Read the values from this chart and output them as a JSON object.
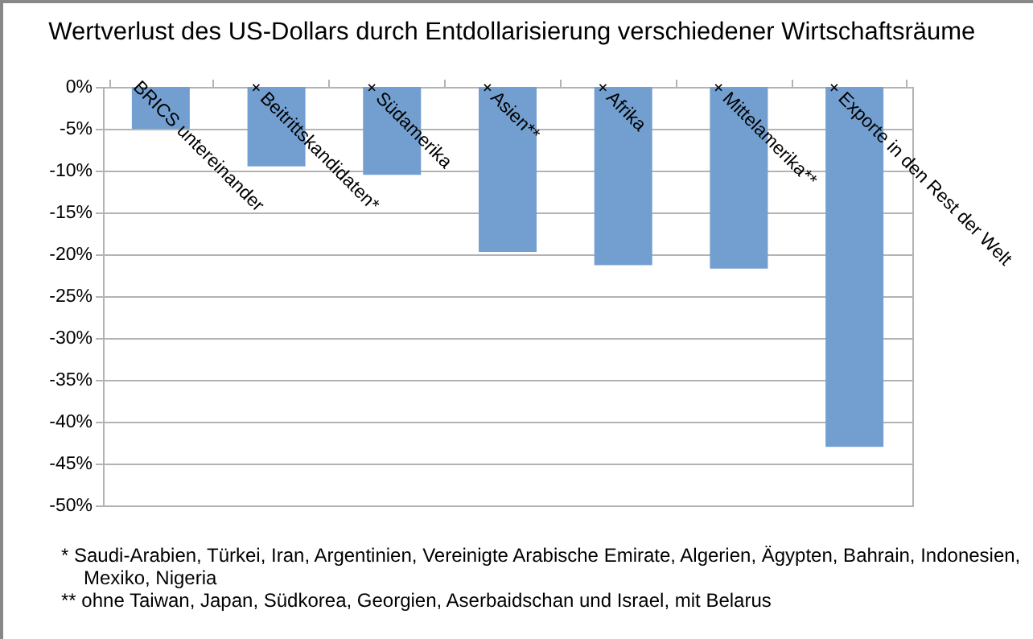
{
  "chart_data": {
    "type": "bar",
    "title": "Wertverlust des US-Dollars durch Entdollarisierung verschiedener Wirtschaftsräume",
    "categories": [
      "BRICS untereinander",
      "+ Beitrittskandidaten*",
      "+ Südamerika",
      "+ Asien**",
      "+ Afrika",
      "+ Mittelamerika**",
      "+ Exporte in den Rest der Welt"
    ],
    "values": [
      -5,
      -9.5,
      -10.5,
      -19.7,
      -21.3,
      -21.7,
      -43
    ],
    "color": "#729fcf",
    "ylim": [
      -50,
      0
    ],
    "yticks": [
      {
        "value": -50,
        "label": "-50%"
      },
      {
        "value": -45,
        "label": "-45%"
      },
      {
        "value": -40,
        "label": "-40%"
      },
      {
        "value": -35,
        "label": "-35%"
      },
      {
        "value": -30,
        "label": "-30%"
      },
      {
        "value": -25,
        "label": "-25%"
      },
      {
        "value": -20,
        "label": "-20%"
      },
      {
        "value": -15,
        "label": "-15%"
      },
      {
        "value": -10,
        "label": "-10%"
      },
      {
        "value": -5,
        "label": "-5%"
      },
      {
        "value": 0,
        "label": "0%"
      }
    ],
    "grid": "y",
    "annotations": [
      "* Saudi-Arabien, Türkei, Iran, Argentinien, Vereinigte Arabische Emirate, Algerien, Ägypten, Bahrain, Indonesien, Mexiko, Nigeria",
      "** ohne Taiwan, Japan, Südkorea, Georgien, Aserbaidschan und Israel, mit Belarus"
    ]
  }
}
